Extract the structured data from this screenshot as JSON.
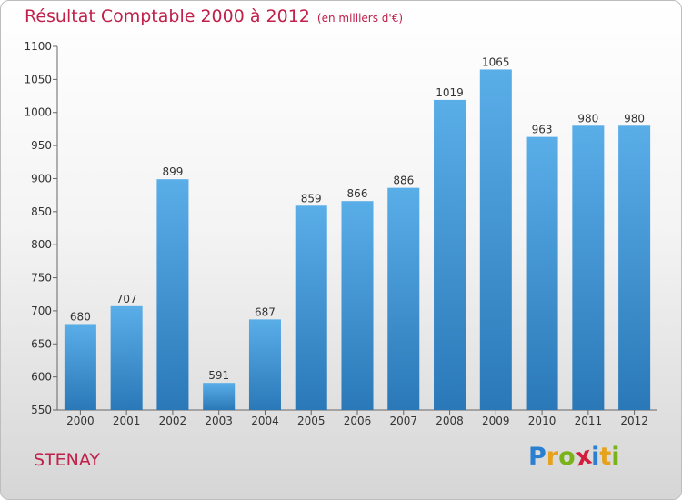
{
  "header": {
    "title": "Résultat Comptable 2000 à 2012",
    "unit": "(en milliers d'€)"
  },
  "footer": {
    "city": "STENAY",
    "logo": {
      "letters": [
        "P",
        "r",
        "o",
        "x",
        "i",
        "t",
        "i"
      ],
      "colors": [
        "#2a7fd0",
        "#e5a21a",
        "#7ab317",
        "#d21e3c",
        "#2a7fd0",
        "#e5a21a",
        "#7ab317"
      ]
    }
  },
  "colors": {
    "title": "#c0204a",
    "bar_top": "#5aaee8",
    "bar_bottom": "#2a78b8"
  },
  "chart_data": {
    "type": "bar",
    "categories": [
      "2000",
      "2001",
      "2002",
      "2003",
      "2004",
      "2005",
      "2006",
      "2007",
      "2008",
      "2009",
      "2010",
      "2011",
      "2012"
    ],
    "values": [
      680,
      707,
      899,
      591,
      687,
      859,
      866,
      886,
      1019,
      1065,
      963,
      980,
      980
    ],
    "data_labels": [
      "680",
      "707",
      "899",
      "591",
      "687",
      "859",
      "866",
      "886",
      "1019",
      "1065",
      "963",
      "980",
      "980"
    ],
    "title": "Résultat Comptable 2000 à 2012",
    "xlabel": "",
    "ylabel": "",
    "ylim": [
      550,
      1100
    ],
    "yticks": [
      550,
      600,
      650,
      700,
      750,
      800,
      850,
      900,
      950,
      1000,
      1050,
      1100
    ],
    "ytick_labels": [
      "550",
      "600",
      "650",
      "700",
      "750",
      "800",
      "850",
      "900",
      "950",
      "1000",
      "1050",
      "1100"
    ],
    "grid": false,
    "legend": "none"
  }
}
